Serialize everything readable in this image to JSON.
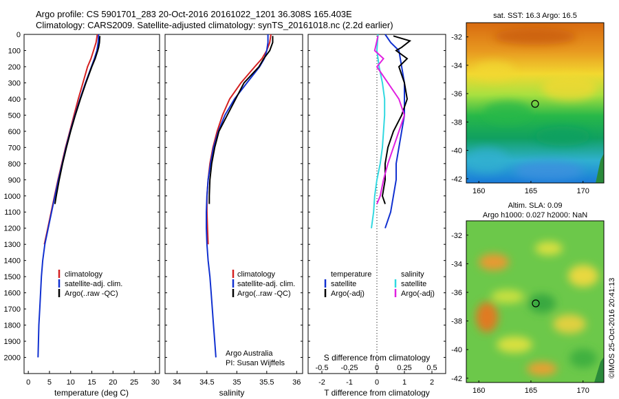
{
  "header": {
    "line1": "Argo profile: CS 5901701_283 20-Oct-2016 20161022_1201 36.308S 165.403E",
    "line2": "Climatology: CARS2009. Satellite-adjusted climatology: synTS_20161018.nc (2.2d earlier)"
  },
  "colors": {
    "climatology": "#d42020",
    "satellite": "#1030d0",
    "argo": "#000000",
    "salinity_satellite": "#30d8e0",
    "salinity_argo": "#e020e0"
  },
  "chart_data": [
    {
      "type": "line",
      "xlabel": "temperature (deg C)",
      "xlim": [
        -1,
        31
      ],
      "xticks": [
        "0",
        "5",
        "10",
        "15",
        "20",
        "25",
        "30"
      ],
      "ylim": [
        0,
        2100
      ],
      "yticks": [
        "0",
        "100",
        "200",
        "300",
        "400",
        "500",
        "600",
        "700",
        "800",
        "900",
        "1000",
        "1100",
        "1200",
        "1300",
        "1400",
        "1500",
        "1600",
        "1700",
        "1800",
        "1900",
        "2000"
      ],
      "legend": [
        "climatology",
        "satellite-adj. clim.",
        "Argo(..raw -QC)"
      ],
      "series": [
        {
          "name": "climatology",
          "depth": [
            0,
            50,
            100,
            150,
            200,
            300,
            400,
            500,
            600,
            700,
            800,
            900,
            1000,
            1100,
            1200,
            1300
          ],
          "values": [
            16.3,
            16.0,
            15.4,
            14.8,
            14.0,
            12.9,
            11.8,
            10.8,
            9.8,
            8.8,
            7.9,
            7.0,
            6.2,
            5.4,
            4.6,
            3.8
          ]
        },
        {
          "name": "satellite-adj. clim.",
          "depth": [
            0,
            50,
            100,
            150,
            200,
            300,
            400,
            500,
            600,
            700,
            800,
            900,
            1000,
            1100,
            1200,
            1300,
            1400,
            1500,
            1600,
            1700,
            1800,
            1900,
            2000
          ],
          "values": [
            16.6,
            16.5,
            16.2,
            15.6,
            14.9,
            13.5,
            12.2,
            11.0,
            9.9,
            8.9,
            8.0,
            7.1,
            6.3,
            5.5,
            4.7,
            3.9,
            3.4,
            3.1,
            2.9,
            2.7,
            2.5,
            2.4,
            2.3
          ]
        },
        {
          "name": "Argo(..raw -QC)",
          "depth": [
            10,
            50,
            80,
            100,
            150,
            200,
            300,
            400,
            500,
            600,
            700,
            800,
            900,
            1000,
            1050
          ],
          "values": [
            16.9,
            16.8,
            16.6,
            16.4,
            15.8,
            15.0,
            13.6,
            12.3,
            11.1,
            10.0,
            9.0,
            8.1,
            7.3,
            6.6,
            6.3
          ]
        }
      ]
    },
    {
      "type": "line",
      "xlabel": "salinity",
      "xlim": [
        33.8,
        36.1
      ],
      "xticks": [
        "34",
        "34.5",
        "35",
        "35.5",
        "36"
      ],
      "ylim": [
        0,
        2100
      ],
      "legend": [
        "climatology",
        "satellite-adj. clim.",
        "Argo(..raw -QC)"
      ],
      "annotation": [
        "Argo Australia",
        "PI: Susan Wijffels"
      ],
      "series": [
        {
          "name": "climatology",
          "depth": [
            0,
            50,
            100,
            150,
            200,
            300,
            400,
            500,
            600,
            700,
            800,
            900,
            1000,
            1100,
            1200,
            1300
          ],
          "values": [
            35.57,
            35.55,
            35.5,
            35.42,
            35.3,
            35.07,
            34.88,
            34.76,
            34.67,
            34.6,
            34.55,
            34.52,
            34.5,
            34.5,
            34.51,
            34.52
          ]
        },
        {
          "name": "satellite-adj. clim.",
          "depth": [
            0,
            50,
            100,
            150,
            200,
            300,
            400,
            500,
            600,
            700,
            800,
            900,
            1000,
            1100,
            1200,
            1300,
            1400,
            1500,
            1600,
            1700,
            1800,
            1900,
            2000
          ],
          "values": [
            35.52,
            35.52,
            35.5,
            35.46,
            35.38,
            35.17,
            34.96,
            34.8,
            34.69,
            34.61,
            34.56,
            34.52,
            34.5,
            34.49,
            34.49,
            34.5,
            34.52,
            34.55,
            34.57,
            34.59,
            34.61,
            34.63,
            34.65
          ]
        },
        {
          "name": "Argo(..raw -QC)",
          "depth": [
            10,
            50,
            100,
            150,
            200,
            300,
            400,
            500,
            600,
            700,
            800,
            900,
            1000,
            1050
          ],
          "values": [
            35.6,
            35.6,
            35.55,
            35.45,
            35.37,
            35.12,
            34.98,
            34.84,
            34.7,
            34.63,
            34.58,
            34.55,
            34.54,
            34.54
          ]
        }
      ]
    },
    {
      "type": "line",
      "xlabel": "T difference from climatology",
      "xlabel2": "S difference from climatology",
      "xlim": [
        -2.5,
        2.5
      ],
      "xticks": [
        "-2",
        "-1",
        "0",
        "1",
        "2"
      ],
      "xticks2": [
        "-0.5",
        "-0.25",
        "0",
        "0.25",
        "0.5"
      ],
      "ylim": [
        0,
        2100
      ],
      "legend_titles": [
        "temperature",
        "salinity"
      ],
      "legend": [
        "satellite",
        "Argo(-adj)",
        "satellite",
        "Argo(-adj)"
      ],
      "series": [
        {
          "name": "satellite",
          "depth": [
            0,
            50,
            100,
            200,
            300,
            400,
            500,
            600,
            700,
            800,
            900,
            1000,
            1100,
            1200
          ],
          "values": [
            0.3,
            0.5,
            0.8,
            0.9,
            1.0,
            1.0,
            1.0,
            0.9,
            0.8,
            0.7,
            0.7,
            0.6,
            0.5,
            0.3
          ]
        },
        {
          "name": "Argo(-adj)",
          "depth": [
            10,
            40,
            80,
            100,
            150,
            200,
            300,
            400,
            500,
            600,
            700,
            800,
            900,
            1000,
            1050
          ],
          "values": [
            0.6,
            1.2,
            0.9,
            0.7,
            1.1,
            0.8,
            1.0,
            1.1,
            0.9,
            0.6,
            0.4,
            0.3,
            0.3,
            0.2,
            0.3
          ]
        },
        {
          "name": "satellite",
          "depth": [
            0,
            100,
            200,
            300,
            400,
            500,
            600,
            700,
            800,
            900,
            1000,
            1100,
            1200
          ],
          "values": [
            0.01,
            0.0,
            0.02,
            0.05,
            0.07,
            0.07,
            0.06,
            0.05,
            0.03,
            0.0,
            -0.02,
            -0.03,
            -0.05
          ]
        },
        {
          "name": "Argo(-adj)",
          "depth": [
            10,
            100,
            150,
            200,
            300,
            400,
            500,
            600,
            700,
            800,
            900,
            1000,
            1050
          ],
          "values": [
            0.01,
            -0.02,
            0.06,
            0.0,
            0.1,
            0.2,
            0.25,
            0.2,
            0.15,
            0.1,
            0.06,
            0.03,
            0.0
          ]
        }
      ]
    }
  ],
  "map_sst": {
    "title": "sat. SST: 16.3 Argo: 16.5",
    "yticks": [
      "-32",
      "-34",
      "-36",
      "-38",
      "-40",
      "-42"
    ],
    "xticks": [
      "160",
      "165",
      "170"
    ]
  },
  "map_sla": {
    "title_line1": "Altim. SLA: 0.09",
    "title_line2": "Argo h1000: 0.027 h2000: NaN",
    "yticks": [
      "-32",
      "-34",
      "-36",
      "-38",
      "-40",
      "-42"
    ],
    "xticks": [
      "160",
      "165",
      "170"
    ]
  },
  "footer": {
    "stamp": "©IMOS 25-Oct-2016 20:41:13"
  }
}
